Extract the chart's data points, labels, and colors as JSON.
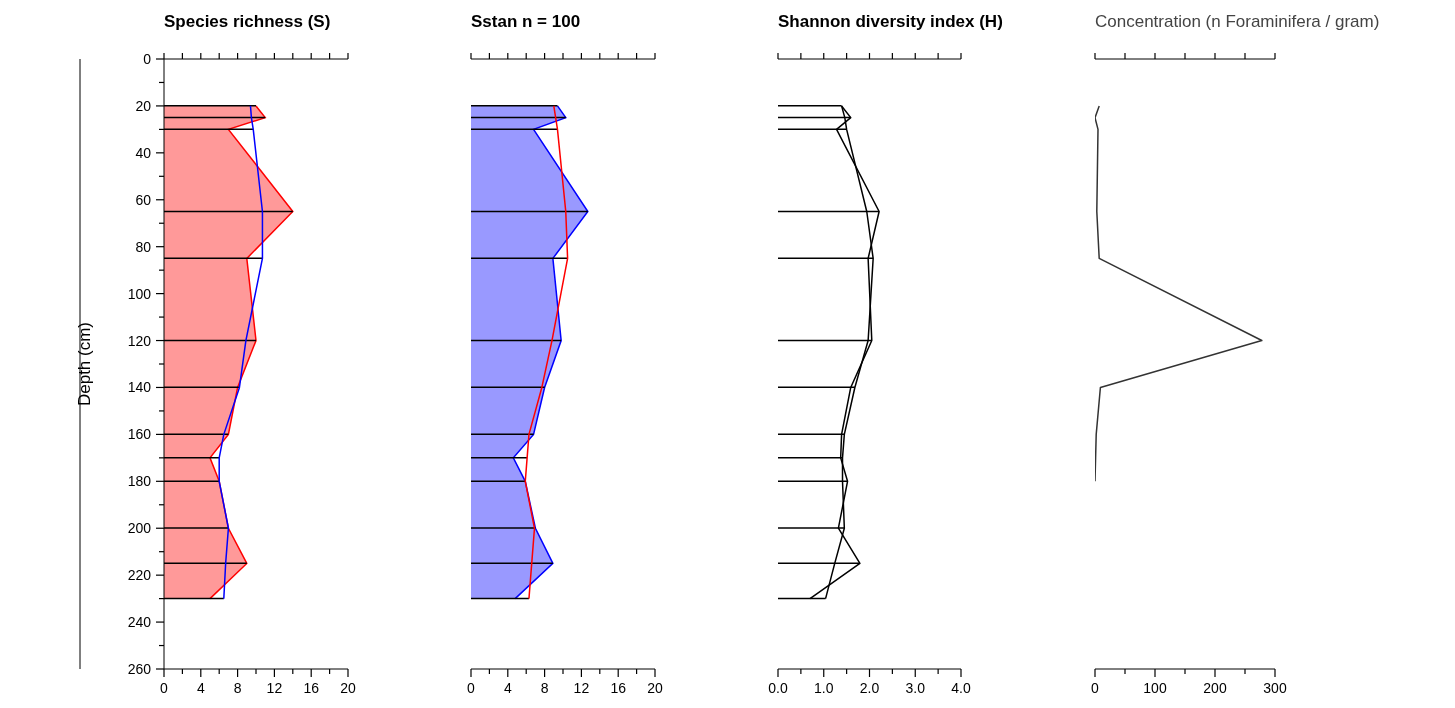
{
  "chart_data": [
    {
      "type": "area",
      "title": "Species richness (S)",
      "ylabel": "Depth (cm)",
      "orientation": "horizontal",
      "x": [
        20,
        25,
        30,
        65,
        85,
        120,
        140,
        160,
        170,
        180,
        200,
        215,
        230
      ],
      "series": [
        {
          "color": "#ff0000",
          "values": [
            10,
            11,
            7,
            14,
            9,
            10,
            8,
            7,
            5,
            6,
            7,
            9,
            5
          ]
        },
        {
          "type": "line",
          "color": "#0000ff",
          "values": [
            9.4,
            9.5,
            9.7,
            10.7,
            10.7,
            8.9,
            8.2,
            6.5,
            6.0,
            6.0,
            7.0,
            6.7,
            6.5
          ]
        },
        {
          "type": "bar",
          "color": "#000000",
          "values": [
            10,
            11,
            9.7,
            14,
            10.7,
            10,
            8.2,
            7,
            6,
            6,
            7,
            9,
            6.5
          ]
        }
      ],
      "xlim": [
        0,
        20
      ],
      "xticks": [
        0,
        {
          "value": 2,
          "label": null
        },
        4,
        {
          "value": 6,
          "label": null
        },
        8,
        {
          "value": 10,
          "label": null
        },
        12,
        {
          "value": 14,
          "label": null
        },
        16,
        {
          "value": 18,
          "label": null
        },
        20
      ],
      "ylim": [
        260,
        0
      ],
      "yticks": [
        0,
        {
          "value": 10,
          "label": null
        },
        20,
        {
          "value": 30,
          "label": null
        },
        40,
        {
          "value": 50,
          "label": null
        },
        60,
        {
          "value": 70,
          "label": null
        },
        80,
        {
          "value": 90,
          "label": null
        },
        100,
        {
          "value": 110,
          "label": null
        },
        120,
        {
          "value": 130,
          "label": null
        },
        140,
        {
          "value": 150,
          "label": null
        },
        160,
        {
          "value": 170,
          "label": null
        },
        180,
        {
          "value": 190,
          "label": null
        },
        200,
        {
          "value": 210,
          "label": null
        },
        220,
        {
          "value": 230,
          "label": null
        },
        240,
        {
          "value": 250,
          "label": null
        },
        260
      ]
    },
    {
      "type": "area",
      "title": "Sstan n = 100",
      "orientation": "horizontal",
      "tick_labels": "x",
      "x": [
        20,
        25,
        30,
        65,
        85,
        120,
        140,
        160,
        170,
        180,
        200,
        215,
        230
      ],
      "series": [
        {
          "color": "#0000ff",
          "values": [
            9.4,
            10.3,
            6.8,
            12.7,
            8.9,
            9.8,
            8.0,
            6.8,
            4.6,
            5.9,
            7.0,
            8.9,
            4.8
          ]
        },
        {
          "type": "line",
          "color": "#ff0000",
          "values": [
            9.0,
            9.2,
            9.4,
            10.3,
            10.5,
            8.8,
            7.7,
            6.3,
            6.1,
            5.9,
            6.9,
            6.6,
            6.3
          ]
        },
        {
          "type": "bar",
          "color": "#000000",
          "values": [
            9.4,
            10.3,
            9.4,
            12.7,
            10.5,
            9.8,
            8.0,
            6.8,
            6.1,
            5.9,
            7.0,
            8.9,
            6.3
          ]
        }
      ],
      "xlim": [
        0,
        20
      ],
      "xticks": [
        0,
        {
          "value": 2,
          "label": null
        },
        4,
        {
          "value": 6,
          "label": null
        },
        8,
        {
          "value": 10,
          "label": null
        },
        12,
        {
          "value": 14,
          "label": null
        },
        16,
        {
          "value": 18,
          "label": null
        },
        20
      ],
      "ylim": [
        260,
        0
      ]
    },
    {
      "type": "line",
      "title": "Shannon diversity index (H)",
      "orientation": "horizontal",
      "tick_labels": "x",
      "x": [
        20,
        25,
        30,
        65,
        85,
        120,
        140,
        160,
        170,
        180,
        200,
        215,
        230
      ],
      "series": [
        {
          "color": "#000000",
          "values": [
            1.39,
            1.59,
            1.28,
            2.21,
            1.97,
            2.05,
            1.59,
            1.39,
            1.37,
            1.52,
            1.32,
            1.79,
            0.7
          ]
        },
        {
          "color": "#000000",
          "values": [
            1.39,
            1.46,
            1.5,
            1.94,
            2.08,
            1.97,
            1.68,
            1.45,
            1.41,
            1.41,
            1.45,
            1.24,
            1.04
          ]
        },
        {
          "type": "bar",
          "color": "#000000",
          "values": [
            1.39,
            1.59,
            1.5,
            2.21,
            2.08,
            2.05,
            1.68,
            1.45,
            1.41,
            1.52,
            1.45,
            1.79,
            1.04
          ]
        }
      ],
      "xlim": [
        0,
        4
      ],
      "xticks": [
        {
          "value": 0,
          "label": "0.0"
        },
        {
          "value": 0.5,
          "label": null
        },
        {
          "value": 1,
          "label": "1.0"
        },
        {
          "value": 1.5,
          "label": null
        },
        {
          "value": 2,
          "label": "2.0"
        },
        {
          "value": 2.5,
          "label": null
        },
        {
          "value": 3,
          "label": "3.0"
        },
        {
          "value": 3.5,
          "label": null
        },
        {
          "value": 4,
          "label": "4.0"
        }
      ],
      "ylim": [
        260,
        0
      ]
    },
    {
      "type": "line",
      "title": "Concentration (n Foraminifera / gram)",
      "orientation": "horizontal",
      "tick_labels": "x",
      "x": [
        20,
        25,
        30,
        65,
        85,
        120,
        140,
        160,
        170,
        180
      ],
      "series": [
        {
          "color": "#333333",
          "values": [
            7,
            0,
            5,
            3,
            7,
            278,
            9,
            2,
            1,
            0
          ]
        }
      ],
      "xlim": [
        0,
        300
      ],
      "xticks": [
        0,
        {
          "value": 50,
          "label": null
        },
        100,
        {
          "value": 150,
          "label": null
        },
        200,
        {
          "value": 250,
          "label": null
        },
        300
      ],
      "ylim": [
        260,
        0
      ]
    }
  ]
}
